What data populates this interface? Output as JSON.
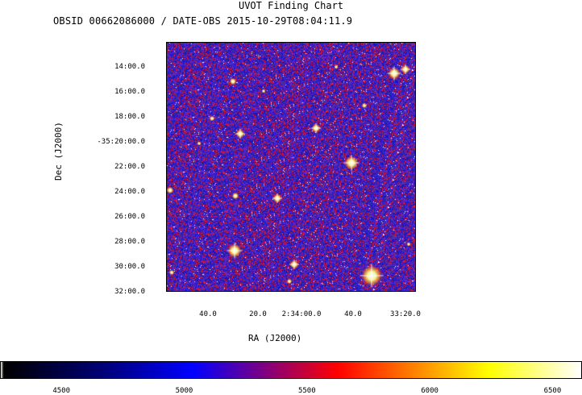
{
  "chart_data": {
    "type": "heatmap",
    "title": "UVOT Finding Chart",
    "subtitle": "OBSID 00662086000 / DATE-OBS 2015-10-29T08:04:11.9",
    "xlabel": "RA (J2000)",
    "ylabel": "Dec (J2000)",
    "x_ticks": [
      "40.0",
      "20.0",
      "2:34:00.0",
      "40.0",
      "33:20.0"
    ],
    "y_ticks": [
      "14:00.0",
      "16:00.0",
      "18:00.0",
      "-35:20:00.0",
      "22:00.0",
      "24:00.0",
      "26:00.0",
      "28:00.0",
      "30:00.0",
      "32:00.0"
    ],
    "colorbar": {
      "ticks": [
        "4500",
        "5000",
        "5500",
        "6000",
        "6500"
      ],
      "tick_values": [
        4500,
        5000,
        5500,
        6000,
        6500
      ],
      "range": [
        4250,
        6620
      ],
      "colors": [
        "#ffffff",
        "#000000",
        "#00007a",
        "#0000ff",
        "#ff0000",
        "#ffff00",
        "#ffffff"
      ]
    },
    "colormap": "heat-like (black-blue-red-yellow-white)"
  }
}
